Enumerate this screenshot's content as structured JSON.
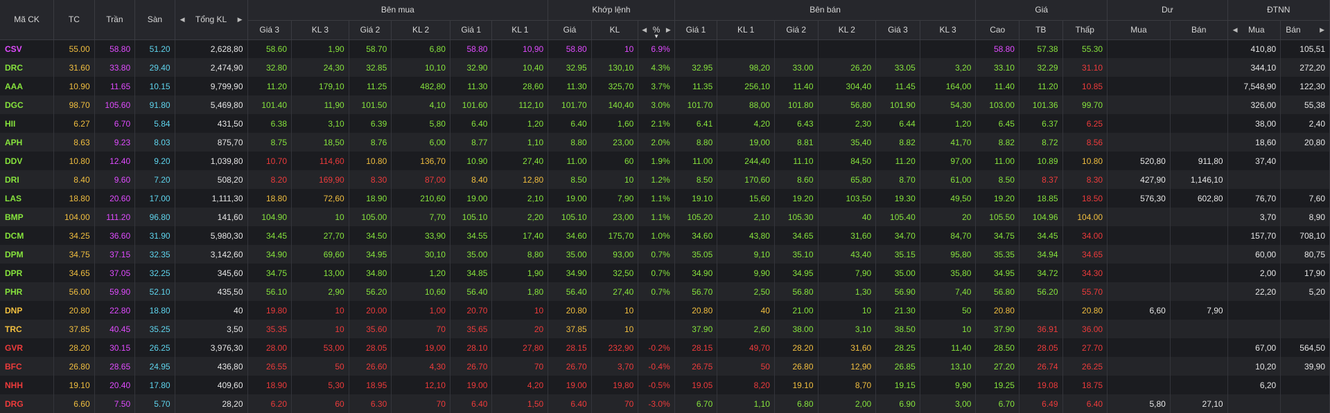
{
  "headers": {
    "ma_ck": "Mã CK",
    "tc": "TC",
    "tran": "Trần",
    "san": "Sàn",
    "tong_kl": "Tổng KL",
    "ben_mua": "Bên mua",
    "khop_lenh": "Khớp lệnh",
    "ben_ban": "Bên bán",
    "gia": "Giá",
    "du": "Dư",
    "dtnn": "ĐTNN",
    "gia3": "Giá 3",
    "kl3": "KL 3",
    "gia2": "Giá 2",
    "kl2": "KL 2",
    "gia1": "Giá 1",
    "kl1": "KL 1",
    "k_gia": "Giá",
    "k_kl": "KL",
    "k_pct": "%",
    "s_gia1": "Giá 1",
    "s_kl1": "KL 1",
    "s_gia2": "Giá 2",
    "s_kl2": "KL 2",
    "s_gia3": "Giá 3",
    "s_kl3": "KL 3",
    "cao": "Cao",
    "tb": "TB",
    "thap": "Thấp",
    "du_mua": "Mua",
    "du_ban": "Bán",
    "nn_mua": "Mua",
    "nn_ban": "Bán"
  },
  "colors": {
    "up": "#86e33c",
    "down": "#ee3b3b",
    "ref": "#f2bf3f",
    "ceil": "#e04bff",
    "floor": "#5fd5ee"
  },
  "rows": [
    {
      "c": "c",
      "v": [
        "CSV",
        "55.00",
        "58.80",
        "51.20",
        "2,628,80",
        "58.60",
        "1,90",
        "58.70",
        "6,80",
        "58.80",
        "10,90",
        "58.80",
        "10",
        "6.9%",
        "",
        "",
        "",
        "",
        "",
        "",
        "58.80",
        "57.38",
        "55.30",
        "",
        "",
        "410,80",
        "105,51"
      ],
      "k": [
        "c",
        "r",
        "c",
        "f",
        "w",
        "u",
        "u",
        "u",
        "u",
        "c",
        "c",
        "c",
        "c",
        "c",
        "",
        "",
        "",
        "",
        "",
        "",
        "c",
        "u",
        "u",
        "",
        "",
        "w",
        "w"
      ]
    },
    {
      "c": "u",
      "v": [
        "DRC",
        "31.60",
        "33.80",
        "29.40",
        "2,474,90",
        "32.80",
        "24,30",
        "32.85",
        "10,10",
        "32.90",
        "10,40",
        "32.95",
        "130,10",
        "4.3%",
        "32.95",
        "98,20",
        "33.00",
        "26,20",
        "33.05",
        "3,20",
        "33.10",
        "32.29",
        "31.10",
        "",
        "",
        "344,10",
        "272,20"
      ],
      "k": [
        "u",
        "r",
        "c",
        "f",
        "w",
        "u",
        "u",
        "u",
        "u",
        "u",
        "u",
        "u",
        "u",
        "u",
        "u",
        "u",
        "u",
        "u",
        "u",
        "u",
        "u",
        "u",
        "d",
        "",
        "",
        "w",
        "w"
      ]
    },
    {
      "c": "u",
      "v": [
        "AAA",
        "10.90",
        "11.65",
        "10.15",
        "9,799,90",
        "11.20",
        "179,10",
        "11.25",
        "482,80",
        "11.30",
        "28,60",
        "11.30",
        "325,70",
        "3.7%",
        "11.35",
        "256,10",
        "11.40",
        "304,40",
        "11.45",
        "164,00",
        "11.40",
        "11.20",
        "10.85",
        "",
        "",
        "7,548,90",
        "122,30"
      ],
      "k": [
        "u",
        "r",
        "c",
        "f",
        "w",
        "u",
        "u",
        "u",
        "u",
        "u",
        "u",
        "u",
        "u",
        "u",
        "u",
        "u",
        "u",
        "u",
        "u",
        "u",
        "u",
        "u",
        "d",
        "",
        "",
        "w",
        "w"
      ]
    },
    {
      "c": "u",
      "v": [
        "DGC",
        "98.70",
        "105.60",
        "91.80",
        "5,469,80",
        "101.40",
        "11,90",
        "101.50",
        "4,10",
        "101.60",
        "112,10",
        "101.70",
        "140,40",
        "3.0%",
        "101.70",
        "88,00",
        "101.80",
        "56,80",
        "101.90",
        "54,30",
        "103.00",
        "101.36",
        "99.70",
        "",
        "",
        "326,00",
        "55,38"
      ],
      "k": [
        "u",
        "r",
        "c",
        "f",
        "w",
        "u",
        "u",
        "u",
        "u",
        "u",
        "u",
        "u",
        "u",
        "u",
        "u",
        "u",
        "u",
        "u",
        "u",
        "u",
        "u",
        "u",
        "u",
        "",
        "",
        "w",
        "w"
      ]
    },
    {
      "c": "u",
      "v": [
        "HII",
        "6.27",
        "6.70",
        "5.84",
        "431,50",
        "6.38",
        "3,10",
        "6.39",
        "5,80",
        "6.40",
        "1,20",
        "6.40",
        "1,60",
        "2.1%",
        "6.41",
        "4,20",
        "6.43",
        "2,30",
        "6.44",
        "1,20",
        "6.45",
        "6.37",
        "6.25",
        "",
        "",
        "38,00",
        "2,40"
      ],
      "k": [
        "u",
        "r",
        "c",
        "f",
        "w",
        "u",
        "u",
        "u",
        "u",
        "u",
        "u",
        "u",
        "u",
        "u",
        "u",
        "u",
        "u",
        "u",
        "u",
        "u",
        "u",
        "u",
        "d",
        "",
        "",
        "w",
        "w"
      ]
    },
    {
      "c": "u",
      "v": [
        "APH",
        "8.63",
        "9.23",
        "8.03",
        "875,70",
        "8.75",
        "18,50",
        "8.76",
        "6,00",
        "8.77",
        "1,10",
        "8.80",
        "23,00",
        "2.0%",
        "8.80",
        "19,00",
        "8.81",
        "35,40",
        "8.82",
        "41,70",
        "8.82",
        "8.72",
        "8.56",
        "",
        "",
        "18,60",
        "20,80"
      ],
      "k": [
        "u",
        "r",
        "c",
        "f",
        "w",
        "u",
        "u",
        "u",
        "u",
        "u",
        "u",
        "u",
        "u",
        "u",
        "u",
        "u",
        "u",
        "u",
        "u",
        "u",
        "u",
        "u",
        "d",
        "",
        "",
        "w",
        "w"
      ]
    },
    {
      "c": "u",
      "v": [
        "DDV",
        "10.80",
        "12.40",
        "9.20",
        "1,039,80",
        "10.70",
        "114,60",
        "10.80",
        "136,70",
        "10.90",
        "27,40",
        "11.00",
        "60",
        "1.9%",
        "11.00",
        "244,40",
        "11.10",
        "84,50",
        "11.20",
        "97,00",
        "11.00",
        "10.89",
        "10.80",
        "520,80",
        "911,80",
        "37,40",
        ""
      ],
      "k": [
        "u",
        "r",
        "c",
        "f",
        "w",
        "d",
        "d",
        "r",
        "r",
        "u",
        "u",
        "u",
        "u",
        "u",
        "u",
        "u",
        "u",
        "u",
        "u",
        "u",
        "u",
        "u",
        "r",
        "w",
        "w",
        "w",
        ""
      ]
    },
    {
      "c": "u",
      "v": [
        "DRI",
        "8.40",
        "9.60",
        "7.20",
        "508,20",
        "8.20",
        "169,90",
        "8.30",
        "87,00",
        "8.40",
        "12,80",
        "8.50",
        "10",
        "1.2%",
        "8.50",
        "170,60",
        "8.60",
        "65,80",
        "8.70",
        "61,00",
        "8.50",
        "8.37",
        "8.30",
        "427,90",
        "1,146,10",
        "",
        ""
      ],
      "k": [
        "u",
        "r",
        "c",
        "f",
        "w",
        "d",
        "d",
        "d",
        "d",
        "r",
        "r",
        "u",
        "u",
        "u",
        "u",
        "u",
        "u",
        "u",
        "u",
        "u",
        "u",
        "d",
        "d",
        "w",
        "w",
        "",
        ""
      ]
    },
    {
      "c": "u",
      "v": [
        "LAS",
        "18.80",
        "20.60",
        "17.00",
        "1,111,30",
        "18.80",
        "72,60",
        "18.90",
        "210,60",
        "19.00",
        "2,10",
        "19.00",
        "7,90",
        "1.1%",
        "19.10",
        "15,60",
        "19.20",
        "103,50",
        "19.30",
        "49,50",
        "19.20",
        "18.85",
        "18.50",
        "576,30",
        "602,80",
        "76,70",
        "7,60"
      ],
      "k": [
        "u",
        "r",
        "c",
        "f",
        "w",
        "r",
        "r",
        "u",
        "u",
        "u",
        "u",
        "u",
        "u",
        "u",
        "u",
        "u",
        "u",
        "u",
        "u",
        "u",
        "u",
        "u",
        "d",
        "w",
        "w",
        "w",
        "w"
      ]
    },
    {
      "c": "u",
      "v": [
        "BMP",
        "104.00",
        "111.20",
        "96.80",
        "141,60",
        "104.90",
        "10",
        "105.00",
        "7,70",
        "105.10",
        "2,20",
        "105.10",
        "23,00",
        "1.1%",
        "105.20",
        "2,10",
        "105.30",
        "40",
        "105.40",
        "20",
        "105.50",
        "104.96",
        "104.00",
        "",
        "",
        "3,70",
        "8,90"
      ],
      "k": [
        "u",
        "r",
        "c",
        "f",
        "w",
        "u",
        "u",
        "u",
        "u",
        "u",
        "u",
        "u",
        "u",
        "u",
        "u",
        "u",
        "u",
        "u",
        "u",
        "u",
        "u",
        "u",
        "r",
        "",
        "",
        "w",
        "w"
      ]
    },
    {
      "c": "u",
      "v": [
        "DCM",
        "34.25",
        "36.60",
        "31.90",
        "5,980,30",
        "34.45",
        "27,70",
        "34.50",
        "33,90",
        "34.55",
        "17,40",
        "34.60",
        "175,70",
        "1.0%",
        "34.60",
        "43,80",
        "34.65",
        "31,60",
        "34.70",
        "84,70",
        "34.75",
        "34.45",
        "34.00",
        "",
        "",
        "157,70",
        "708,10"
      ],
      "k": [
        "u",
        "r",
        "c",
        "f",
        "w",
        "u",
        "u",
        "u",
        "u",
        "u",
        "u",
        "u",
        "u",
        "u",
        "u",
        "u",
        "u",
        "u",
        "u",
        "u",
        "u",
        "u",
        "d",
        "",
        "",
        "w",
        "w"
      ]
    },
    {
      "c": "u",
      "v": [
        "DPM",
        "34.75",
        "37.15",
        "32.35",
        "3,142,60",
        "34.90",
        "69,60",
        "34.95",
        "30,10",
        "35.00",
        "8,80",
        "35.00",
        "93,00",
        "0.7%",
        "35.05",
        "9,10",
        "35.10",
        "43,40",
        "35.15",
        "95,80",
        "35.35",
        "34.94",
        "34.65",
        "",
        "",
        "60,00",
        "80,75"
      ],
      "k": [
        "u",
        "r",
        "c",
        "f",
        "w",
        "u",
        "u",
        "u",
        "u",
        "u",
        "u",
        "u",
        "u",
        "u",
        "u",
        "u",
        "u",
        "u",
        "u",
        "u",
        "u",
        "u",
        "d",
        "",
        "",
        "w",
        "w"
      ]
    },
    {
      "c": "u",
      "v": [
        "DPR",
        "34.65",
        "37.05",
        "32.25",
        "345,60",
        "34.75",
        "13,00",
        "34.80",
        "1,20",
        "34.85",
        "1,90",
        "34.90",
        "32,50",
        "0.7%",
        "34.90",
        "9,90",
        "34.95",
        "7,90",
        "35.00",
        "35,80",
        "34.95",
        "34.72",
        "34.30",
        "",
        "",
        "2,00",
        "17,90"
      ],
      "k": [
        "u",
        "r",
        "c",
        "f",
        "w",
        "u",
        "u",
        "u",
        "u",
        "u",
        "u",
        "u",
        "u",
        "u",
        "u",
        "u",
        "u",
        "u",
        "u",
        "u",
        "u",
        "u",
        "d",
        "",
        "",
        "w",
        "w"
      ]
    },
    {
      "c": "u",
      "v": [
        "PHR",
        "56.00",
        "59.90",
        "52.10",
        "435,50",
        "56.10",
        "2,90",
        "56.20",
        "10,60",
        "56.40",
        "1,80",
        "56.40",
        "27,40",
        "0.7%",
        "56.70",
        "2,50",
        "56.80",
        "1,30",
        "56.90",
        "7,40",
        "56.80",
        "56.20",
        "55.70",
        "",
        "",
        "22,20",
        "5,20"
      ],
      "k": [
        "u",
        "r",
        "c",
        "f",
        "w",
        "u",
        "u",
        "u",
        "u",
        "u",
        "u",
        "u",
        "u",
        "u",
        "u",
        "u",
        "u",
        "u",
        "u",
        "u",
        "u",
        "u",
        "d",
        "",
        "",
        "w",
        "w"
      ]
    },
    {
      "c": "r",
      "v": [
        "DNP",
        "20.80",
        "22.80",
        "18.80",
        "40",
        "19.80",
        "10",
        "20.00",
        "1,00",
        "20.70",
        "10",
        "20.80",
        "10",
        "",
        "20.80",
        "40",
        "21.00",
        "10",
        "21.30",
        "50",
        "20.80",
        "",
        "20.80",
        "6,60",
        "7,90",
        "",
        ""
      ],
      "k": [
        "r",
        "r",
        "c",
        "f",
        "w",
        "d",
        "d",
        "d",
        "d",
        "d",
        "d",
        "r",
        "r",
        "",
        "r",
        "r",
        "u",
        "u",
        "u",
        "u",
        "r",
        "",
        "r",
        "w",
        "w",
        "",
        ""
      ]
    },
    {
      "c": "r",
      "v": [
        "TRC",
        "37.85",
        "40.45",
        "35.25",
        "3,50",
        "35.35",
        "10",
        "35.60",
        "70",
        "35.65",
        "20",
        "37.85",
        "10",
        "",
        "37.90",
        "2,60",
        "38.00",
        "3,10",
        "38.50",
        "10",
        "37.90",
        "36.91",
        "36.00",
        "",
        "",
        "",
        ""
      ],
      "k": [
        "r",
        "r",
        "c",
        "f",
        "w",
        "d",
        "d",
        "d",
        "d",
        "d",
        "d",
        "r",
        "r",
        "",
        "u",
        "u",
        "u",
        "u",
        "u",
        "u",
        "u",
        "d",
        "d",
        "",
        "",
        "",
        ""
      ]
    },
    {
      "c": "d",
      "v": [
        "GVR",
        "28.20",
        "30.15",
        "26.25",
        "3,976,30",
        "28.00",
        "53,00",
        "28.05",
        "19,00",
        "28.10",
        "27,80",
        "28.15",
        "232,90",
        "-0.2%",
        "28.15",
        "49,70",
        "28.20",
        "31,60",
        "28.25",
        "11,40",
        "28.50",
        "28.05",
        "27.70",
        "",
        "",
        "67,00",
        "564,50"
      ],
      "k": [
        "d",
        "r",
        "c",
        "f",
        "w",
        "d",
        "d",
        "d",
        "d",
        "d",
        "d",
        "d",
        "d",
        "d",
        "d",
        "d",
        "r",
        "r",
        "u",
        "u",
        "u",
        "d",
        "d",
        "",
        "",
        "w",
        "w"
      ]
    },
    {
      "c": "d",
      "v": [
        "BFC",
        "26.80",
        "28.65",
        "24.95",
        "436,80",
        "26.55",
        "50",
        "26.60",
        "4,30",
        "26.70",
        "70",
        "26.70",
        "3,70",
        "-0.4%",
        "26.75",
        "50",
        "26.80",
        "12,90",
        "26.85",
        "13,10",
        "27.20",
        "26.74",
        "26.25",
        "",
        "",
        "10,20",
        "39,90"
      ],
      "k": [
        "d",
        "r",
        "c",
        "f",
        "w",
        "d",
        "d",
        "d",
        "d",
        "d",
        "d",
        "d",
        "d",
        "d",
        "d",
        "d",
        "r",
        "r",
        "u",
        "u",
        "u",
        "d",
        "d",
        "",
        "",
        "w",
        "w"
      ]
    },
    {
      "c": "d",
      "v": [
        "NHH",
        "19.10",
        "20.40",
        "17.80",
        "409,60",
        "18.90",
        "5,30",
        "18.95",
        "12,10",
        "19.00",
        "4,20",
        "19.00",
        "19,80",
        "-0.5%",
        "19.05",
        "8,20",
        "19.10",
        "8,70",
        "19.15",
        "9,90",
        "19.25",
        "19.08",
        "18.75",
        "",
        "",
        "6,20",
        ""
      ],
      "k": [
        "d",
        "r",
        "c",
        "f",
        "w",
        "d",
        "d",
        "d",
        "d",
        "d",
        "d",
        "d",
        "d",
        "d",
        "d",
        "d",
        "r",
        "r",
        "u",
        "u",
        "u",
        "d",
        "d",
        "",
        "",
        "w",
        ""
      ]
    },
    {
      "c": "d",
      "v": [
        "DRG",
        "6.60",
        "7.50",
        "5.70",
        "28,20",
        "6.20",
        "60",
        "6.30",
        "70",
        "6.40",
        "1,50",
        "6.40",
        "70",
        "-3.0%",
        "6.70",
        "1,10",
        "6.80",
        "2,00",
        "6.90",
        "3,00",
        "6.70",
        "6.49",
        "6.40",
        "5,80",
        "27,10",
        "",
        ""
      ],
      "k": [
        "d",
        "r",
        "c",
        "f",
        "w",
        "d",
        "d",
        "d",
        "d",
        "d",
        "d",
        "d",
        "d",
        "d",
        "u",
        "u",
        "u",
        "u",
        "u",
        "u",
        "u",
        "d",
        "d",
        "w",
        "w",
        "",
        ""
      ]
    }
  ]
}
